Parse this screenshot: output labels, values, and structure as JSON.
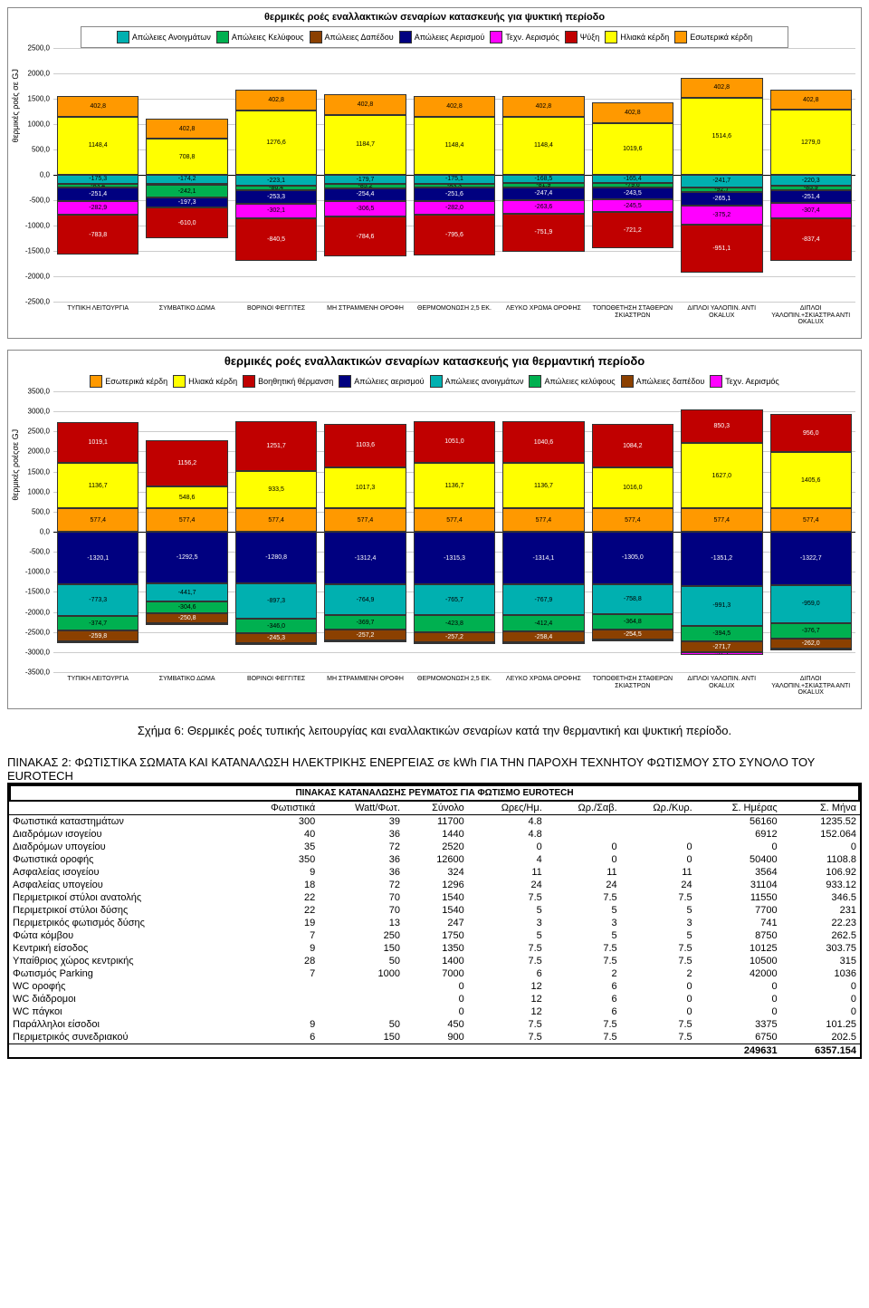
{
  "chart1": {
    "type": "stacked-bar",
    "title": "θερμικές ροές εναλλακτικών σεναρίων κατασκευής για ψυκτική περίοδο",
    "ylabel": "θερμικές ροές σε GJ",
    "ymin": -2500,
    "ymax": 2500,
    "ytick_step": 500,
    "background_color": "#ffffff",
    "legend": [
      {
        "label": "Απώλειες Ανοιγμάτων",
        "color": "#00b0b0"
      },
      {
        "label": "Απώλειες Κελύφους",
        "color": "#00b050"
      },
      {
        "label": "Απώλειες Δαπέδου",
        "color": "#8b4000"
      },
      {
        "label": "Απώλειες Αερισμού",
        "color": "#000080"
      },
      {
        "label": "Τεχν. Αερισμός",
        "color": "#ff00ff"
      },
      {
        "label": "Ψύξη",
        "color": "#c00000"
      },
      {
        "label": "Ηλιακά κέρδη",
        "color": "#ffff00"
      },
      {
        "label": "Εσωτερικά κέρδη",
        "color": "#ff9900"
      }
    ],
    "categories": [
      "ΤΥΠΙΚΗ ΛΕΙΤΟΥΡΓΙΑ",
      "ΣΥΜΒΑΤΙΚΟ ΔΩΜΑ",
      "ΒΟΡΙΝΟΙ ΦΕΓΓΙΤΕΣ",
      "ΜΗ ΣΤΡΑΜΜΕΝΗ ΟΡΟΦΗ",
      "ΘΕΡΜΟΜΟΝΩΣΗ 2,5 ΕΚ.",
      "ΛΕΥΚΟ ΧΡΩΜΑ ΟΡΟΦΗΣ",
      "ΤΟΠΟΘΕΤΗΣΗ ΣΤΑΘΕΡΩΝ ΣΚΙΑΣΤΡΩΝ",
      "ΔΙΠΛΟΙ ΥΑΛΟΠΙΝ. ΑΝΤΙ OKALUX",
      "ΔΙΠΛΟΙ ΥΑΛΟΠΙΝ.+ΣΚΙΑΣΤΡΑ ΑΝΤΙ OKALUX"
    ],
    "pos_stacks": [
      [
        {
          "v": 1148.4,
          "c": "#ffff00"
        },
        {
          "v": 402.8,
          "c": "#ff9900"
        }
      ],
      [
        {
          "v": 708.8,
          "c": "#ffff00"
        },
        {
          "v": 402.8,
          "c": "#ff9900"
        }
      ],
      [
        {
          "v": 1276.6,
          "c": "#ffff00"
        },
        {
          "v": 402.8,
          "c": "#ff9900"
        }
      ],
      [
        {
          "v": 1184.7,
          "c": "#ffff00"
        },
        {
          "v": 402.8,
          "c": "#ff9900"
        }
      ],
      [
        {
          "v": 1148.4,
          "c": "#ffff00"
        },
        {
          "v": 402.8,
          "c": "#ff9900"
        }
      ],
      [
        {
          "v": 1148.4,
          "c": "#ffff00"
        },
        {
          "v": 402.8,
          "c": "#ff9900"
        }
      ],
      [
        {
          "v": 1019.6,
          "c": "#ffff00"
        },
        {
          "v": 402.8,
          "c": "#ff9900"
        }
      ],
      [
        {
          "v": 1514.6,
          "c": "#ffff00"
        },
        {
          "v": 402.8,
          "c": "#ff9900"
        }
      ],
      [
        {
          "v": 1279.0,
          "c": "#ffff00"
        },
        {
          "v": 402.8,
          "c": "#ff9900"
        }
      ]
    ],
    "neg_stacks": [
      [
        {
          "v": -175.3,
          "c": "#00b0b0"
        },
        {
          "v": -83.4,
          "c": "#00b050"
        },
        {
          "v": -251.4,
          "c": "#000080"
        },
        {
          "v": -282.9,
          "c": "#ff00ff"
        },
        {
          "v": -783.8,
          "c": "#c00000"
        }
      ],
      [
        {
          "v": -174.2,
          "c": "#00b0b0"
        },
        {
          "v": -29.3,
          "c": "#8b4000"
        },
        {
          "v": -242.1,
          "c": "#00b050"
        },
        {
          "v": -197.3,
          "c": "#000080"
        },
        {
          "v": -610.0,
          "c": "#c00000"
        }
      ],
      [
        {
          "v": -223.1,
          "c": "#00b0b0"
        },
        {
          "v": -86.4,
          "c": "#00b050"
        },
        {
          "v": -253.3,
          "c": "#000080"
        },
        {
          "v": -302.1,
          "c": "#ff00ff"
        },
        {
          "v": -840.5,
          "c": "#c00000"
        }
      ],
      [
        {
          "v": -179.7,
          "c": "#00b0b0"
        },
        {
          "v": -85.2,
          "c": "#00b050"
        },
        {
          "v": -254.4,
          "c": "#000080"
        },
        {
          "v": -306.5,
          "c": "#ff00ff"
        },
        {
          "v": -784.6,
          "c": "#c00000"
        }
      ],
      [
        {
          "v": -175.1,
          "c": "#00b0b0"
        },
        {
          "v": -83.3,
          "c": "#00b050"
        },
        {
          "v": -251.6,
          "c": "#000080"
        },
        {
          "v": -282.0,
          "c": "#ff00ff"
        },
        {
          "v": -795.6,
          "c": "#c00000"
        }
      ],
      [
        {
          "v": -168.5,
          "c": "#00b0b0"
        },
        {
          "v": -81.9,
          "c": "#00b050"
        },
        {
          "v": -247.4,
          "c": "#000080"
        },
        {
          "v": -263.6,
          "c": "#ff00ff"
        },
        {
          "v": -751.9,
          "c": "#c00000"
        }
      ],
      [
        {
          "v": -165.4,
          "c": "#00b0b0"
        },
        {
          "v": -79.6,
          "c": "#00b050"
        },
        {
          "v": -243.5,
          "c": "#000080"
        },
        {
          "v": -245.5,
          "c": "#ff00ff"
        },
        {
          "v": -721.2,
          "c": "#c00000"
        }
      ],
      [
        {
          "v": -241.7,
          "c": "#00b0b0"
        },
        {
          "v": -92.7,
          "c": "#00b050"
        },
        {
          "v": -265.1,
          "c": "#000080"
        },
        {
          "v": -375.2,
          "c": "#ff00ff"
        },
        {
          "v": -951.1,
          "c": "#c00000"
        }
      ],
      [
        {
          "v": -220.3,
          "c": "#00b0b0"
        },
        {
          "v": -85.9,
          "c": "#00b050"
        },
        {
          "v": -251.4,
          "c": "#000080"
        },
        {
          "v": -307.4,
          "c": "#ff00ff"
        },
        {
          "v": -837.4,
          "c": "#c00000"
        }
      ]
    ]
  },
  "chart2": {
    "type": "stacked-bar",
    "title": "θερμικές ροές εναλλακτικών σεναρίων κατασκευής  για θερμαντική περίοδο",
    "ylabel": "θερμικές ροέςσε GJ",
    "ymin": -3500,
    "ymax": 3500,
    "ytick_step": 500,
    "legend": [
      {
        "label": "Εσωτερικά κέρδη",
        "color": "#ff9900"
      },
      {
        "label": "Ηλιακά κέρδη",
        "color": "#ffff00"
      },
      {
        "label": "Βοηθητική θέρμανση",
        "color": "#c00000"
      },
      {
        "label": "Απώλειες αερισμού",
        "color": "#000080"
      },
      {
        "label": "Απώλειες ανοιγμάτων",
        "color": "#00b0b0"
      },
      {
        "label": "Απώλειες κελύφους",
        "color": "#00b050"
      },
      {
        "label": "Απώλειες δαπέδου",
        "color": "#8b4000"
      },
      {
        "label": "Τεχν. Αερισμός",
        "color": "#ff00ff"
      }
    ],
    "categories": [
      "ΤΥΠΙΚΗ ΛΕΙΤΟΥΡΓΙΑ",
      "ΣΥΜΒΑΤΙΚΟ ΔΩΜΑ",
      "ΒΟΡΙΝΟΙ ΦΕΓΓΙΤΕΣ",
      "ΜΗ ΣΤΡΑΜΜΕΝΗ ΟΡΟΦΗ",
      "ΘΕΡΜΟΜΟΝΩΣΗ 2,5 ΕΚ.",
      "ΛΕΥΚΟ ΧΡΩΜΑ ΟΡΟΦΗΣ",
      "ΤΟΠΟΘΕΤΗΣΗ ΣΤΑΘΕΡΩΝ ΣΚΙΑΣΤΡΩΝ",
      "ΔΙΠΛΟΙ ΥΑΛΟΠΙΝ. ΑΝΤΙ OKALUX",
      "ΔΙΠΛΟΙ ΥΑΛΟΠΙΝ.+ΣΚΙΑΣΤΡΑ ΑΝΤΙ OKALUX"
    ],
    "pos_stacks": [
      [
        {
          "v": 577.4,
          "c": "#ff9900"
        },
        {
          "v": 1136.7,
          "c": "#ffff00"
        },
        {
          "v": 1019.1,
          "c": "#c00000"
        }
      ],
      [
        {
          "v": 577.4,
          "c": "#ff9900"
        },
        {
          "v": 548.6,
          "c": "#ffff00"
        },
        {
          "v": 1156.2,
          "c": "#c00000"
        }
      ],
      [
        {
          "v": 577.4,
          "c": "#ff9900"
        },
        {
          "v": 933.5,
          "c": "#ffff00"
        },
        {
          "v": 1251.7,
          "c": "#c00000"
        }
      ],
      [
        {
          "v": 577.4,
          "c": "#ff9900"
        },
        {
          "v": 1017.3,
          "c": "#ffff00"
        },
        {
          "v": 1103.6,
          "c": "#c00000"
        }
      ],
      [
        {
          "v": 577.4,
          "c": "#ff9900"
        },
        {
          "v": 1136.7,
          "c": "#ffff00"
        },
        {
          "v": 1051.0,
          "c": "#c00000"
        }
      ],
      [
        {
          "v": 577.4,
          "c": "#ff9900"
        },
        {
          "v": 1136.7,
          "c": "#ffff00"
        },
        {
          "v": 1040.6,
          "c": "#c00000"
        }
      ],
      [
        {
          "v": 577.4,
          "c": "#ff9900"
        },
        {
          "v": 1016.0,
          "c": "#ffff00"
        },
        {
          "v": 1084.2,
          "c": "#c00000"
        }
      ],
      [
        {
          "v": 577.4,
          "c": "#ff9900"
        },
        {
          "v": 1627.0,
          "c": "#ffff00"
        },
        {
          "v": 850.3,
          "c": "#c00000"
        }
      ],
      [
        {
          "v": 577.4,
          "c": "#ff9900"
        },
        {
          "v": 1405.6,
          "c": "#ffff00"
        },
        {
          "v": 956.0,
          "c": "#c00000"
        }
      ]
    ],
    "neg_stacks": [
      [
        {
          "v": -1320.1,
          "c": "#000080"
        },
        {
          "v": -773.3,
          "c": "#00b0b0"
        },
        {
          "v": -374.7,
          "c": "#00b050"
        },
        {
          "v": -259.8,
          "c": "#8b4000"
        },
        {
          "v": -15.8,
          "c": "#ff00ff"
        }
      ],
      [
        {
          "v": -1292.5,
          "c": "#000080"
        },
        {
          "v": -441.7,
          "c": "#00b0b0"
        },
        {
          "v": -304.6,
          "c": "#00b050"
        },
        {
          "v": -250.8,
          "c": "#8b4000"
        },
        {
          "v": -0.1,
          "c": "#ff00ff"
        }
      ],
      [
        {
          "v": -1280.8,
          "c": "#000080"
        },
        {
          "v": -897.3,
          "c": "#00b0b0"
        },
        {
          "v": -346.0,
          "c": "#00b050"
        },
        {
          "v": -245.3,
          "c": "#8b4000"
        },
        {
          "v": -0.3,
          "c": "#ff00ff"
        }
      ],
      [
        {
          "v": -1312.4,
          "c": "#000080"
        },
        {
          "v": -764.9,
          "c": "#00b0b0"
        },
        {
          "v": -369.7,
          "c": "#00b050"
        },
        {
          "v": -257.2,
          "c": "#8b4000"
        },
        {
          "v": -1.6,
          "c": "#ff00ff"
        }
      ],
      [
        {
          "v": -1315.3,
          "c": "#000080"
        },
        {
          "v": -765.7,
          "c": "#00b0b0"
        },
        {
          "v": -423.8,
          "c": "#00b050"
        },
        {
          "v": -257.2,
          "c": "#8b4000"
        },
        {
          "v": -15.7,
          "c": "#ff00ff"
        }
      ],
      [
        {
          "v": -1314.1,
          "c": "#000080"
        },
        {
          "v": -767.9,
          "c": "#00b0b0"
        },
        {
          "v": -412.4,
          "c": "#00b050"
        },
        {
          "v": -258.4,
          "c": "#8b4000"
        },
        {
          "v": -12.3,
          "c": "#ff00ff"
        }
      ],
      [
        {
          "v": -1305.0,
          "c": "#000080"
        },
        {
          "v": -758.8,
          "c": "#00b0b0"
        },
        {
          "v": -364.8,
          "c": "#00b050"
        },
        {
          "v": -254.5,
          "c": "#8b4000"
        },
        {
          "v": -4.8,
          "c": "#ff00ff"
        }
      ],
      [
        {
          "v": -1351.2,
          "c": "#000080"
        },
        {
          "v": -991.3,
          "c": "#00b0b0"
        },
        {
          "v": -394.5,
          "c": "#00b050"
        },
        {
          "v": -271.7,
          "c": "#8b4000"
        },
        {
          "v": -57.1,
          "c": "#ff00ff"
        }
      ],
      [
        {
          "v": -1322.7,
          "c": "#000080"
        },
        {
          "v": -959.0,
          "c": "#00b0b0"
        },
        {
          "v": -376.7,
          "c": "#00b050"
        },
        {
          "v": -262.0,
          "c": "#8b4000"
        },
        {
          "v": -30.4,
          "c": "#ff00ff"
        }
      ]
    ]
  },
  "caption": "Σχήμα 6: Θερμικές ροές τυπικής λειτουργίας και εναλλακτικών σεναρίων κατά την θερμαντική και ψυκτική περίοδο.",
  "table_heading": "ΠΙΝΑΚΑΣ 2:   ΦΩΤΙΣΤΙΚΑ ΣΩΜΑΤΑ  ΚΑΙ ΚΑΤΑΝΑΛΩΣΗ ΗΛΕΚΤΡΙΚΗΣ ΕΝΕΡΓΕΙΑΣ σε kWh  ΓΙΑ ΤΗΝ ΠΑΡΟΧΗ ΤΕΧΝΗΤΟΥ ΦΩΤΙΣΜΟΥ ΣΤΟ ΣΥΝΟΛΟ ΤΟΥ  EUROTECH",
  "table_title": "ΠΙΝΑΚΑΣ ΚΑΤΑΝΑΛΩΣΗΣ ΡΕΥΜΑΤΟΣ ΓΙΑ ΦΩΤΙΣΜΟ EUROTECH",
  "columns": [
    "",
    "Φωτιστικά",
    "Watt/Φωτ.",
    "Σύνολο",
    "Ωρες/Ημ.",
    "Ωρ./Σαβ.",
    "Ωρ./Κυρ.",
    "Σ. Ημέρας",
    "Σ. Μήνα"
  ],
  "rows": [
    [
      "Φωτιστικά καταστημάτων",
      "300",
      "39",
      "11700",
      "4.8",
      "",
      "",
      "56160",
      "1235.52"
    ],
    [
      "Διαδρόμων ισογείου",
      "40",
      "36",
      "1440",
      "4.8",
      "",
      "",
      "6912",
      "152.064"
    ],
    [
      "Διαδρόμων υπογείου",
      "35",
      "72",
      "2520",
      "0",
      "0",
      "0",
      "0",
      "0"
    ],
    [
      "Φωτιστικά οροφής",
      "350",
      "36",
      "12600",
      "4",
      "0",
      "0",
      "50400",
      "1108.8"
    ],
    [
      "Ασφαλείας ισογείου",
      "9",
      "36",
      "324",
      "11",
      "11",
      "11",
      "3564",
      "106.92"
    ],
    [
      "Ασφαλείας υπογείου",
      "18",
      "72",
      "1296",
      "24",
      "24",
      "24",
      "31104",
      "933.12"
    ],
    [
      "Περιμετρικοί στύλοι ανατολής",
      "22",
      "70",
      "1540",
      "7.5",
      "7.5",
      "7.5",
      "11550",
      "346.5"
    ],
    [
      "Περιμετρικοί στύλοι δύσης",
      "22",
      "70",
      "1540",
      "5",
      "5",
      "5",
      "7700",
      "231"
    ],
    [
      "Περιμετρικός φωτισμός δύσης",
      "19",
      "13",
      "247",
      "3",
      "3",
      "3",
      "741",
      "22.23"
    ],
    [
      "Φώτα κόμβου",
      "7",
      "250",
      "1750",
      "5",
      "5",
      "5",
      "8750",
      "262.5"
    ],
    [
      "Κεντρική είσοδος",
      "9",
      "150",
      "1350",
      "7.5",
      "7.5",
      "7.5",
      "10125",
      "303.75"
    ],
    [
      "Υπαίθριος χώρος κεντρικής",
      "28",
      "50",
      "1400",
      "7.5",
      "7.5",
      "7.5",
      "10500",
      "315"
    ],
    [
      "Φωτισμός Parking",
      "7",
      "1000",
      "7000",
      "6",
      "2",
      "2",
      "42000",
      "1036"
    ],
    [
      "WC οροφής",
      "",
      "",
      "0",
      "12",
      "6",
      "0",
      "0",
      "0"
    ],
    [
      "WC διάδρομοι",
      "",
      "",
      "0",
      "12",
      "6",
      "0",
      "0",
      "0"
    ],
    [
      "WC πάγκοι",
      "",
      "",
      "0",
      "12",
      "6",
      "0",
      "0",
      "0"
    ],
    [
      "Παράλληλοι είσοδοι",
      "9",
      "50",
      "450",
      "7.5",
      "7.5",
      "7.5",
      "3375",
      "101.25"
    ],
    [
      "Περιμετρικός συνεδριακού",
      "6",
      "150",
      "900",
      "7.5",
      "7.5",
      "7.5",
      "6750",
      "202.5"
    ]
  ],
  "totals": [
    "",
    "",
    "",
    "",
    "",
    "",
    "",
    "249631",
    "6357.154"
  ]
}
